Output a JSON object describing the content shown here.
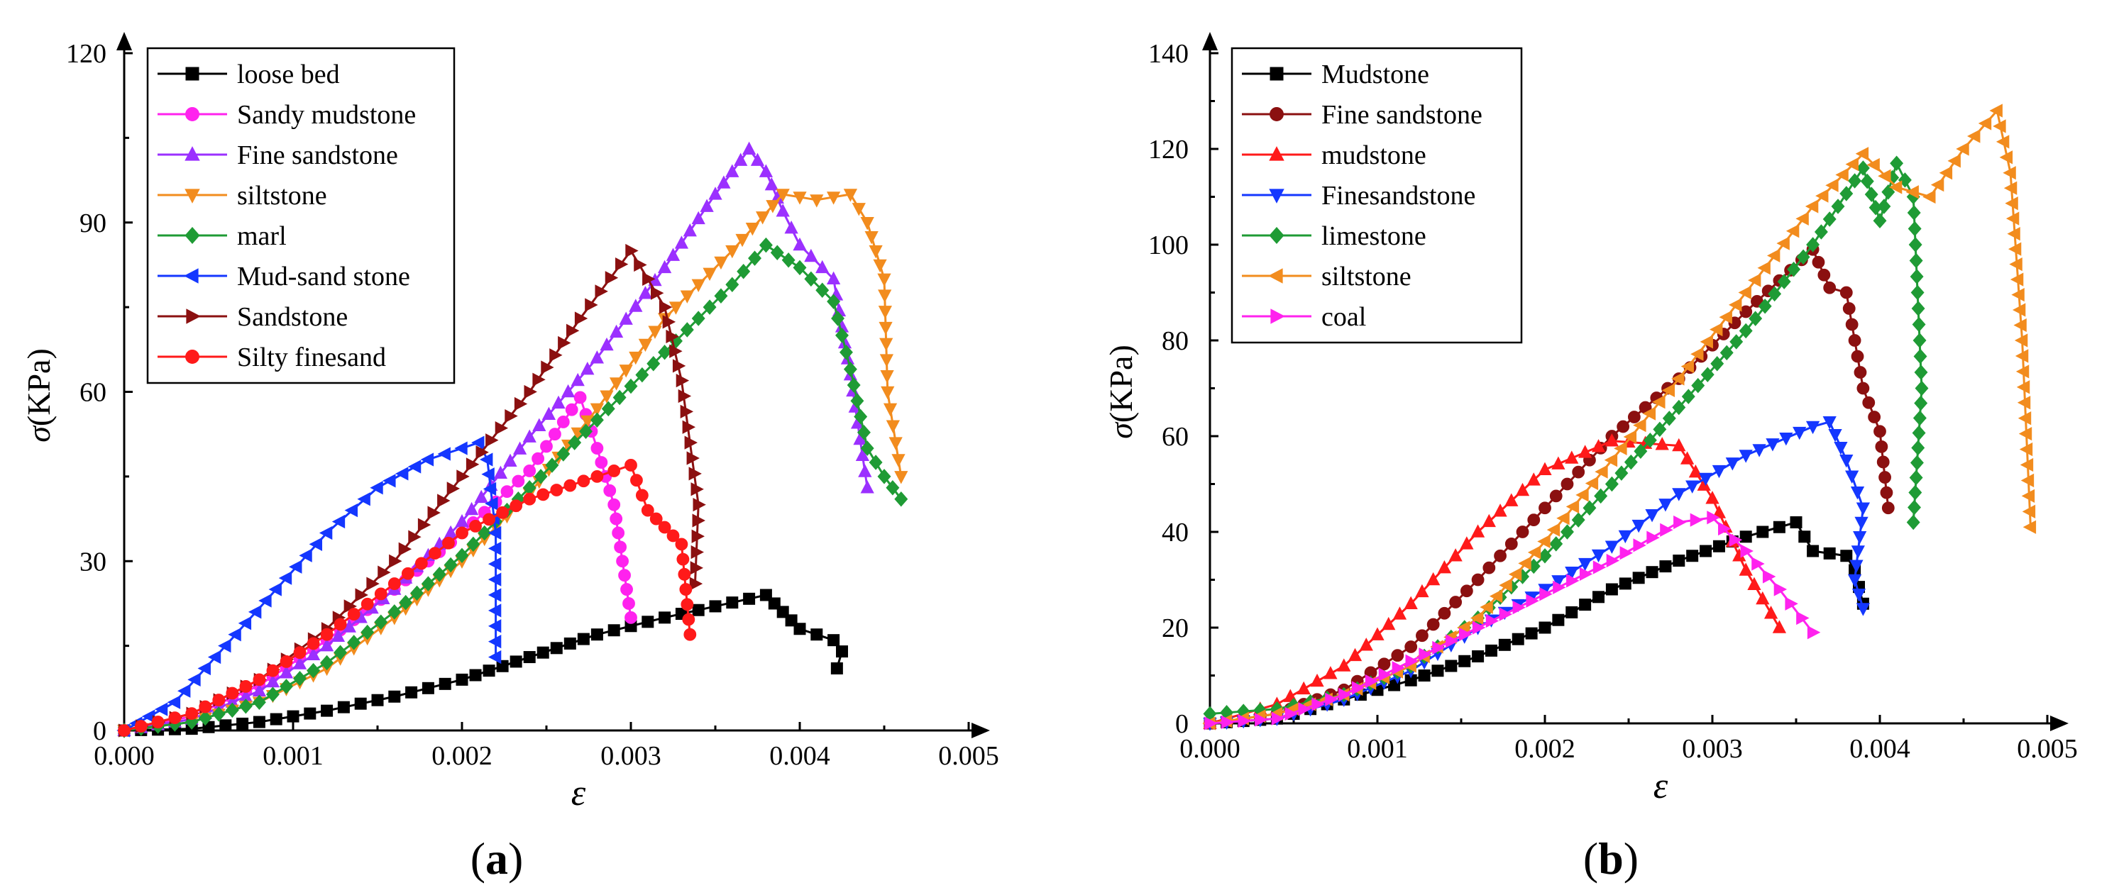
{
  "colors": {
    "black": "#000000",
    "magenta": "#ff22ee",
    "purple": "#9b30ff",
    "orange": "#f28c1e",
    "green": "#1f9b35",
    "blue": "#1437ff",
    "darkred": "#8b1010",
    "red": "#ff1a1a"
  },
  "chart_data": [
    {
      "type": "line",
      "panel_label": "a",
      "xlabel": "ε",
      "ylabel_sym": "σ",
      "ylabel_unit": "(KPa)",
      "xlim": [
        0,
        0.005
      ],
      "ylim": [
        0,
        120
      ],
      "xticks": [
        0,
        0.001,
        0.002,
        0.003,
        0.004,
        0.005
      ],
      "xtick_labels": [
        "0.000",
        "0.001",
        "0.002",
        "0.003",
        "0.004",
        "0.005"
      ],
      "yticks": [
        0,
        30,
        60,
        90,
        120
      ],
      "ytick_labels": [
        "0",
        "30",
        "60",
        "90",
        "120"
      ],
      "legend_position": "top-left",
      "series": [
        {
          "name": "loose bed",
          "color": "black",
          "marker": "square",
          "x": [
            0,
            0.0004,
            0.0008,
            0.0012,
            0.0016,
            0.002,
            0.0024,
            0.0028,
            0.0032,
            0.0035,
            0.0038,
            0.0039,
            0.004,
            0.0041,
            0.0042,
            0.00425,
            0.00422
          ],
          "y": [
            0,
            0.3,
            1.5,
            3.5,
            6,
            9,
            13,
            17,
            20,
            22,
            24,
            21,
            18,
            17,
            16,
            14,
            11
          ]
        },
        {
          "name": "Sandy mudstone",
          "color": "magenta",
          "marker": "circle",
          "x": [
            0,
            0.0004,
            0.0008,
            0.0012,
            0.0016,
            0.002,
            0.0024,
            0.0027,
            0.0028,
            0.0029,
            0.00295,
            0.003
          ],
          "y": [
            0,
            2.5,
            8,
            16,
            25,
            35,
            46,
            59,
            50,
            40,
            30,
            20
          ]
        },
        {
          "name": "Fine sandstone",
          "color": "purple",
          "marker": "triangle-up",
          "x": [
            0,
            0.0004,
            0.0008,
            0.0012,
            0.0016,
            0.002,
            0.0024,
            0.0028,
            0.0032,
            0.0035,
            0.0037,
            0.0038,
            0.0039,
            0.004,
            0.0042,
            0.0043,
            0.0044
          ],
          "y": [
            0,
            2,
            7,
            15,
            25,
            37,
            52,
            66,
            82,
            95,
            103,
            99,
            92,
            86,
            80,
            63,
            43
          ]
        },
        {
          "name": "siltstone",
          "color": "orange",
          "marker": "triangle-down",
          "x": [
            0,
            0.0004,
            0.0008,
            0.0012,
            0.0016,
            0.002,
            0.0024,
            0.0028,
            0.0032,
            0.0036,
            0.0039,
            0.0041,
            0.0043,
            0.0044,
            0.0045,
            0.00452,
            0.0046
          ],
          "y": [
            0,
            1.5,
            5,
            11,
            20,
            30,
            42,
            57,
            73,
            85,
            95,
            94,
            95,
            90,
            80,
            60,
            45
          ]
        },
        {
          "name": "marl",
          "color": "green",
          "marker": "diamond",
          "x": [
            0,
            0.0004,
            0.0008,
            0.0012,
            0.0016,
            0.002,
            0.0024,
            0.0028,
            0.0032,
            0.0036,
            0.0038,
            0.004,
            0.0042,
            0.0043,
            0.0044,
            0.0045,
            0.0046
          ],
          "y": [
            0,
            1.5,
            5,
            12,
            21,
            31,
            43,
            55,
            67,
            79,
            86,
            82,
            76,
            64,
            50,
            45,
            41
          ]
        },
        {
          "name": "Mud-sand stone",
          "color": "blue",
          "marker": "triangle-left",
          "x": [
            0,
            0.0003,
            0.0006,
            0.0009,
            0.0012,
            0.0015,
            0.0018,
            0.0021,
            0.00215,
            0.0022,
            0.0022
          ],
          "y": [
            0,
            5,
            15,
            25,
            35,
            43,
            48,
            51,
            48,
            35,
            13
          ]
        },
        {
          "name": "Sandstone",
          "color": "darkred",
          "marker": "triangle-right",
          "x": [
            0,
            0.0004,
            0.0008,
            0.0012,
            0.0016,
            0.002,
            0.0024,
            0.0027,
            0.003,
            0.0032,
            0.0033,
            0.0034,
            0.00338
          ],
          "y": [
            0,
            3,
            9,
            18,
            30,
            45,
            60,
            73,
            85,
            75,
            62,
            40,
            26
          ]
        },
        {
          "name": "Silty finesand",
          "color": "red",
          "marker": "circle",
          "x": [
            0,
            0.0004,
            0.0008,
            0.0012,
            0.0016,
            0.002,
            0.0024,
            0.0028,
            0.003,
            0.0031,
            0.0032,
            0.0033,
            0.00335
          ],
          "y": [
            0,
            3,
            9,
            17,
            26,
            35,
            41,
            45,
            47,
            39,
            36,
            33,
            17
          ]
        }
      ]
    },
    {
      "type": "line",
      "panel_label": "b",
      "xlabel": "ε",
      "ylabel_sym": "σ",
      "ylabel_unit": "(KPa)",
      "xlim": [
        0,
        0.005
      ],
      "ylim": [
        0,
        140
      ],
      "xticks": [
        0,
        0.001,
        0.002,
        0.003,
        0.004,
        0.005
      ],
      "xtick_labels": [
        "0.000",
        "0.001",
        "0.002",
        "0.003",
        "0.004",
        "0.005"
      ],
      "yticks": [
        0,
        20,
        40,
        60,
        80,
        100,
        120,
        140
      ],
      "ytick_labels": [
        "0",
        "20",
        "40",
        "60",
        "80",
        "100",
        "120",
        "140"
      ],
      "legend_position": "top-left",
      "series": [
        {
          "name": "Mudstone",
          "color": "black",
          "marker": "square",
          "x": [
            0,
            0.0004,
            0.0008,
            0.0012,
            0.0016,
            0.002,
            0.0024,
            0.0028,
            0.0032,
            0.0035,
            0.0036,
            0.0038,
            0.00385,
            0.0039
          ],
          "y": [
            0,
            1,
            5,
            9,
            14,
            20,
            28,
            34,
            39,
            42,
            36,
            35,
            32,
            25
          ]
        },
        {
          "name": "Fine sandstone",
          "color": "darkred",
          "marker": "circle",
          "x": [
            0,
            0.0004,
            0.0008,
            0.0012,
            0.0016,
            0.002,
            0.0024,
            0.0028,
            0.0032,
            0.0036,
            0.0037,
            0.0038,
            0.0039,
            0.004,
            0.00405
          ],
          "y": [
            0,
            2,
            7,
            16,
            30,
            45,
            60,
            72,
            86,
            99,
            91,
            90,
            70,
            61,
            45
          ]
        },
        {
          "name": "mudstone",
          "color": "red",
          "marker": "triangle-up",
          "x": [
            0,
            0.0004,
            0.0008,
            0.0012,
            0.0016,
            0.002,
            0.0024,
            0.0028,
            0.003,
            0.0032,
            0.0034
          ],
          "y": [
            0,
            4,
            12,
            25,
            40,
            53,
            59,
            58,
            47,
            32,
            20
          ]
        },
        {
          "name": "Finesandstone",
          "color": "blue",
          "marker": "triangle-down",
          "x": [
            0,
            0.0004,
            0.0008,
            0.0012,
            0.0016,
            0.002,
            0.0024,
            0.0028,
            0.0032,
            0.0036,
            0.0037,
            0.0038,
            0.0039,
            0.00385,
            0.0039
          ],
          "y": [
            0,
            1,
            5,
            11,
            20,
            28,
            37,
            48,
            56,
            62,
            63,
            55,
            45,
            30,
            24
          ]
        },
        {
          "name": "limestone",
          "color": "green",
          "marker": "diamond",
          "x": [
            0,
            0.0004,
            0.0008,
            0.0012,
            0.0016,
            0.002,
            0.0024,
            0.0028,
            0.0032,
            0.0036,
            0.0039,
            0.004,
            0.0041,
            0.0042,
            0.00425,
            0.0042
          ],
          "y": [
            2,
            3,
            6,
            12,
            22,
            35,
            50,
            66,
            82,
            100,
            116,
            105,
            117,
            110,
            70,
            42
          ]
        },
        {
          "name": "siltstone",
          "color": "orange",
          "marker": "triangle-left",
          "x": [
            0,
            0.0004,
            0.0008,
            0.0012,
            0.0016,
            0.002,
            0.0024,
            0.0028,
            0.0032,
            0.0036,
            0.0039,
            0.0041,
            0.0043,
            0.0045,
            0.0047,
            0.00478,
            0.00485,
            0.0049
          ],
          "y": [
            0,
            2,
            6,
            12,
            22,
            38,
            55,
            72,
            90,
            108,
            119,
            112,
            110,
            120,
            128,
            115,
            80,
            41
          ]
        },
        {
          "name": "coal",
          "color": "magenta",
          "marker": "triangle-right",
          "x": [
            0,
            0.0004,
            0.0008,
            0.0012,
            0.0016,
            0.002,
            0.0024,
            0.0028,
            0.003,
            0.0032,
            0.0034,
            0.0036
          ],
          "y": [
            0,
            1,
            6,
            13,
            20,
            27,
            34,
            42,
            43,
            36,
            28,
            19
          ]
        }
      ]
    }
  ]
}
